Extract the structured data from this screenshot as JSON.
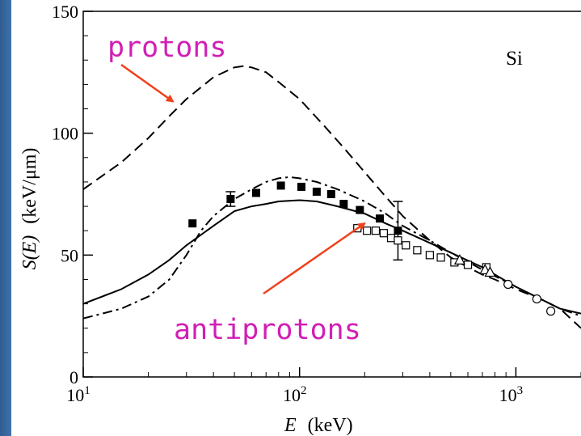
{
  "chart_data": {
    "type": "line",
    "title": "",
    "material_label": "Si",
    "xlabel_var": "E",
    "xlabel_unit": "(keV)",
    "ylabel_var": "S(E)",
    "ylabel_unit": "(keV/μm)",
    "x_scale": "log",
    "xlim": [
      10,
      2000
    ],
    "ylim": [
      0,
      150
    ],
    "x_ticks": [
      {
        "value": 10,
        "base": "10",
        "exp": "1"
      },
      {
        "value": 100,
        "base": "10",
        "exp": "2"
      },
      {
        "value": 1000,
        "base": "10",
        "exp": "3"
      }
    ],
    "y_ticks": [
      {
        "value": 0,
        "label": "0"
      },
      {
        "value": 50,
        "label": "50"
      },
      {
        "value": 100,
        "label": "100"
      },
      {
        "value": 150,
        "label": "150"
      }
    ],
    "grid": false,
    "annotations": [
      {
        "text": "protons",
        "color": "#d11fb5",
        "arrow_color": "#f0401c",
        "points_to": {
          "x": 26,
          "y": 113
        }
      },
      {
        "text": "antiprotons",
        "color": "#d11fb5",
        "arrow_color": "#f0401c",
        "points_to": {
          "x": 200,
          "y": 63
        }
      }
    ],
    "series": [
      {
        "style": "dashed",
        "x": [
          10,
          15,
          20,
          25,
          30,
          40,
          50,
          55,
          60,
          70,
          80,
          100,
          130,
          160,
          200,
          250,
          300,
          400,
          500,
          600,
          700,
          800,
          1000,
          1300,
          1600,
          2000
        ],
        "y": [
          77,
          88,
          98,
          107,
          114,
          123,
          127,
          127.5,
          127,
          125,
          121,
          114,
          103,
          94,
          84,
          74,
          66,
          56,
          49,
          45,
          42,
          40,
          36,
          32,
          28,
          20
        ]
      },
      {
        "style": "dash-dot",
        "x": [
          10,
          15,
          20,
          25,
          30,
          35,
          40,
          50,
          60,
          70,
          80,
          90,
          100,
          120,
          150,
          200,
          250,
          300,
          400,
          500,
          700,
          1000,
          1300,
          1600,
          2000
        ],
        "y": [
          24,
          28,
          33,
          40,
          50,
          60,
          66,
          73,
          77,
          80,
          81.5,
          82,
          81.5,
          80,
          77,
          72,
          67,
          62,
          56,
          51,
          44,
          37,
          32,
          28,
          25
        ]
      },
      {
        "style": "solid",
        "x": [
          10,
          15,
          20,
          25,
          30,
          40,
          50,
          60,
          70,
          80,
          100,
          120,
          150,
          200,
          250,
          300,
          400,
          500,
          700,
          1000,
          1300,
          1600,
          2000
        ],
        "y": [
          30,
          36,
          42,
          48,
          54,
          62,
          68,
          70,
          71,
          72,
          72.5,
          72,
          70,
          67,
          63,
          60,
          55,
          51,
          45,
          37,
          32,
          28,
          26
        ]
      },
      {
        "style": "filled-squares",
        "x": [
          32,
          48,
          63,
          82,
          102,
          120,
          140,
          160,
          190,
          235,
          285
        ],
        "y": [
          63,
          73,
          75.5,
          78.5,
          78,
          76,
          75,
          71,
          68.5,
          65,
          60
        ]
      },
      {
        "style": "open-squares",
        "x": [
          185,
          205,
          225,
          245,
          265,
          285,
          310,
          350,
          400,
          450,
          520,
          600,
          730
        ],
        "y": [
          61,
          60,
          60,
          59,
          57,
          56,
          54,
          52,
          50,
          49,
          47,
          46,
          45
        ]
      },
      {
        "style": "open-triangles",
        "x": [
          550,
          720,
          760
        ],
        "y": [
          48,
          44,
          43
        ]
      },
      {
        "style": "open-circles",
        "x": [
          920,
          1250,
          1450
        ],
        "y": [
          38,
          32,
          27
        ]
      }
    ],
    "error_bars": [
      {
        "x": 48,
        "low": 70,
        "high": 76
      },
      {
        "x": 285,
        "low": 48,
        "high": 72
      }
    ]
  }
}
